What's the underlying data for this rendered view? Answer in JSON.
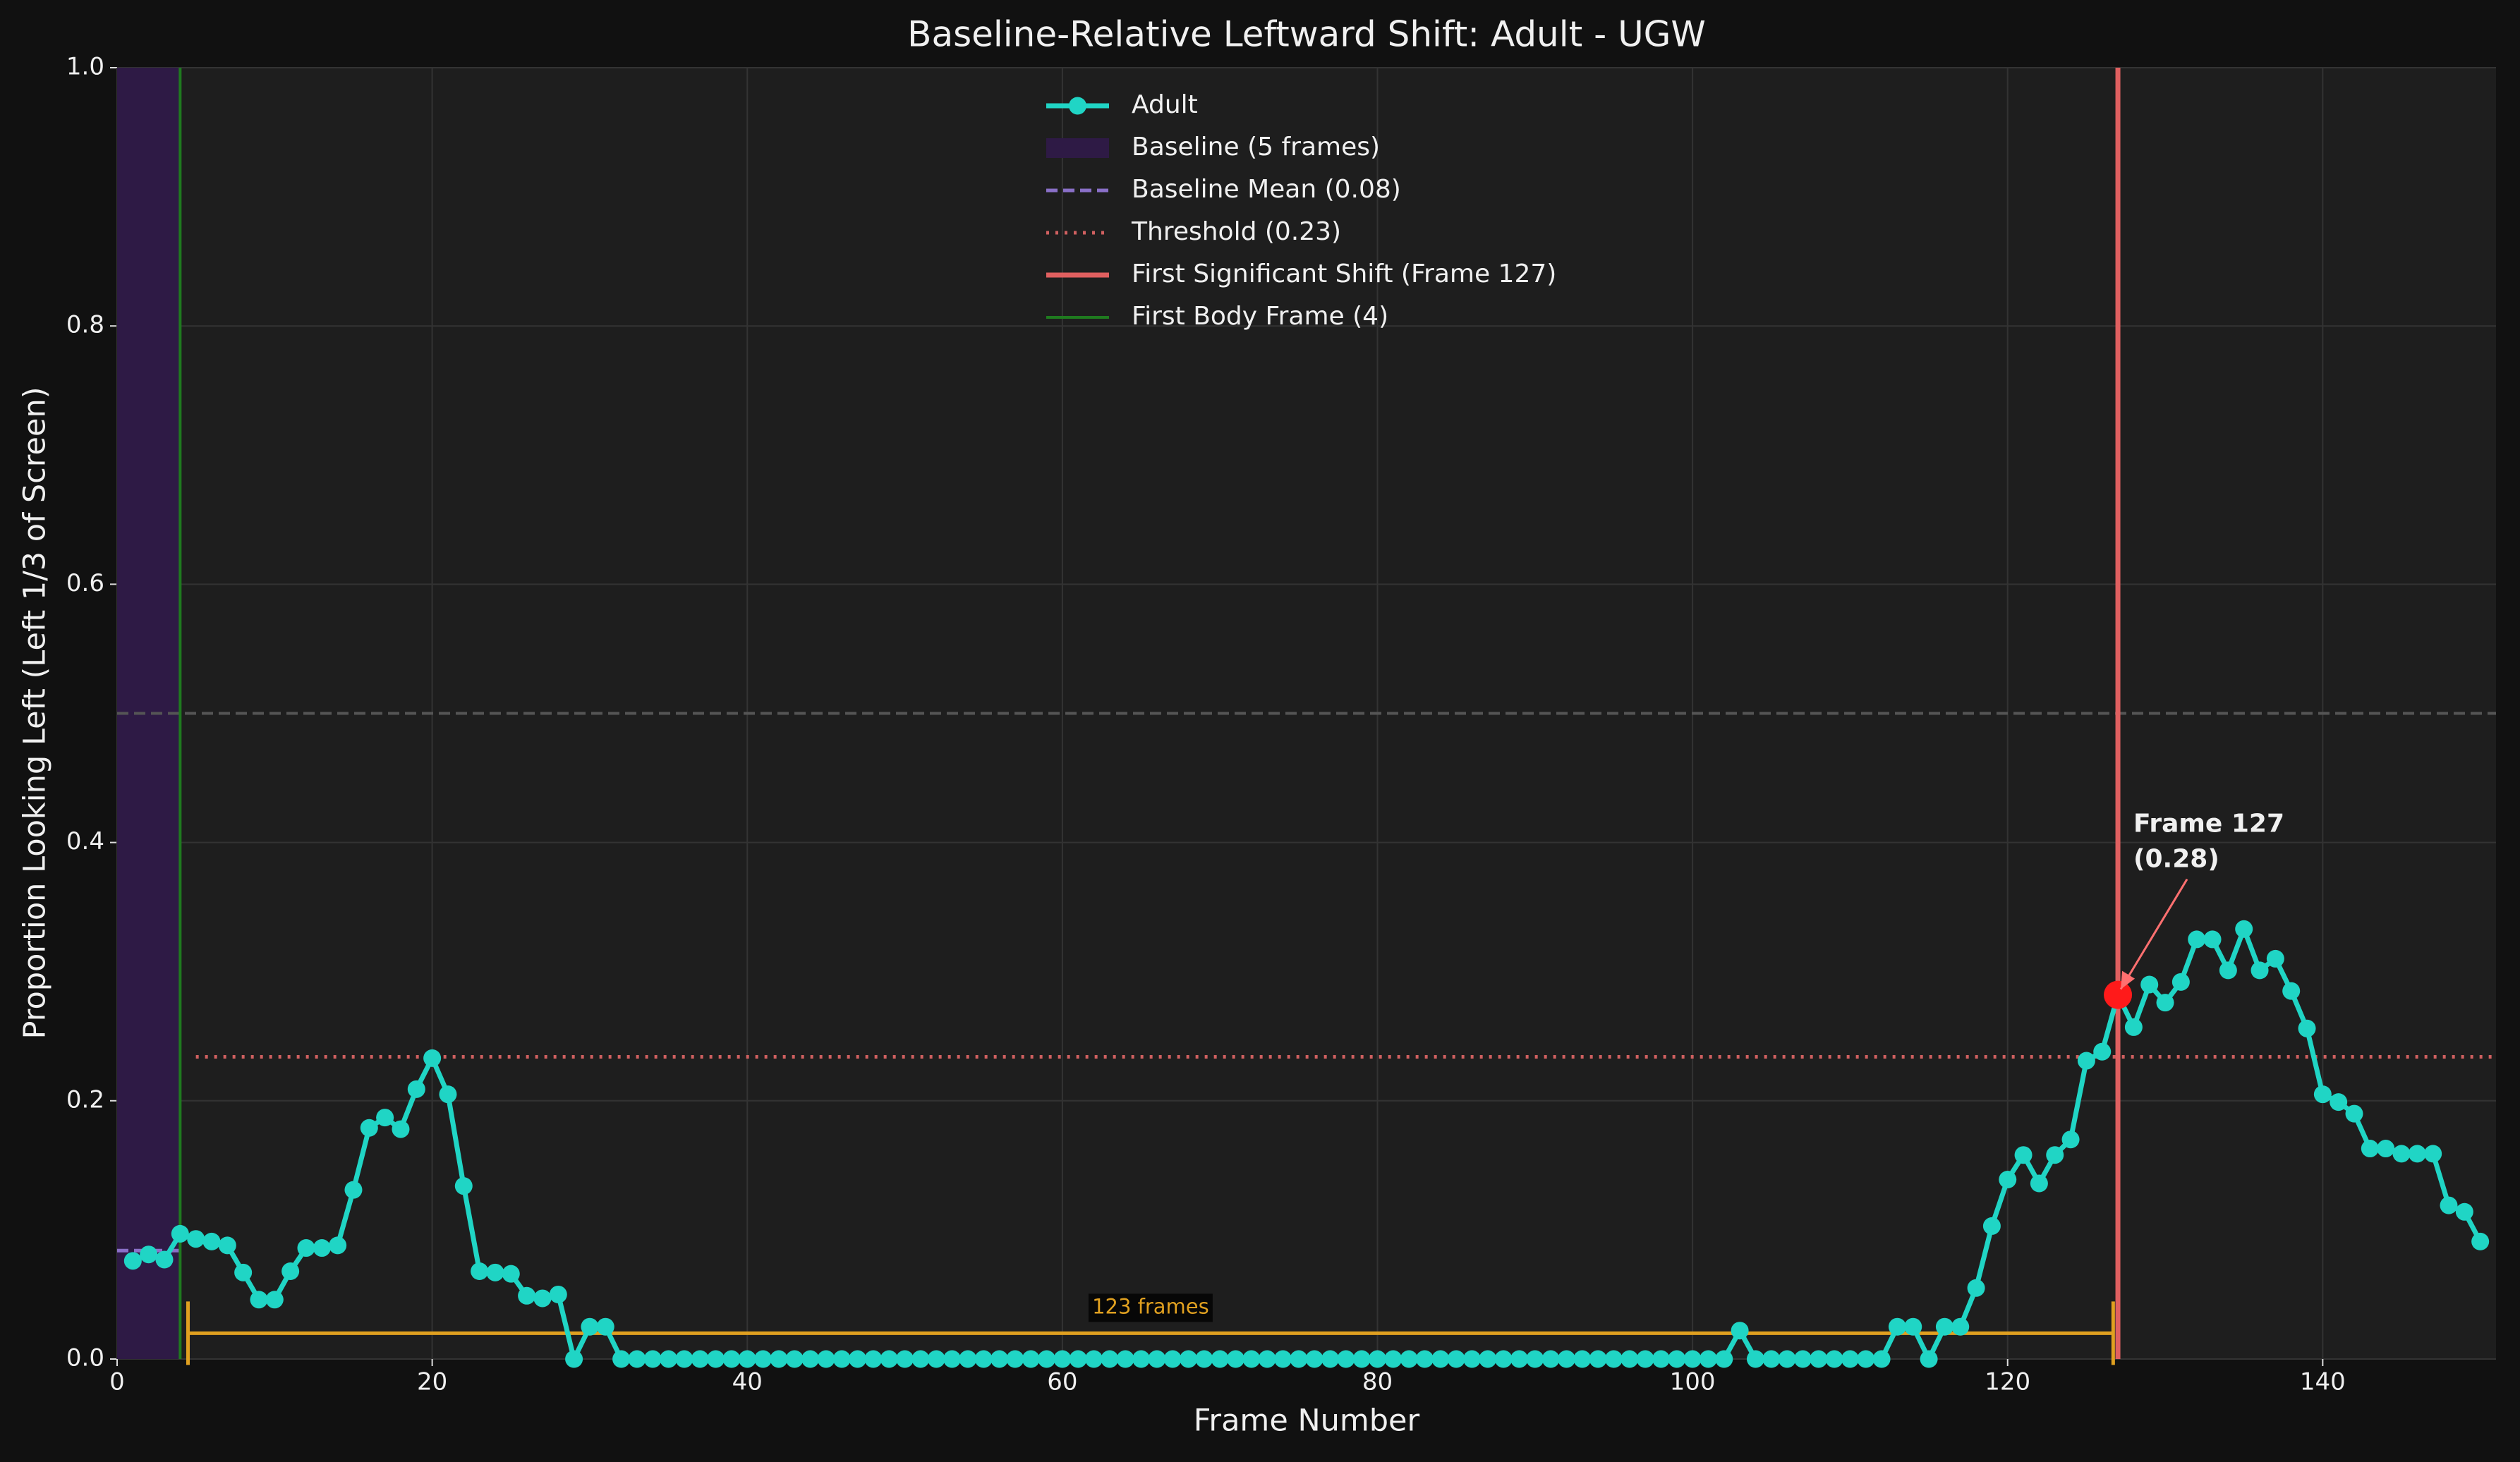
{
  "chart_data": {
    "type": "line",
    "title": "Baseline-Relative Leftward Shift: Adult - UGW",
    "xlabel": "Frame Number",
    "ylabel": "Proportion Looking Left (Left 1/3 of Screen)",
    "xlim": [
      0,
      151
    ],
    "ylim": [
      0,
      1
    ],
    "xticks": [
      0,
      20,
      40,
      60,
      80,
      100,
      120,
      140
    ],
    "yticks": [
      {
        "value": 0,
        "label": "0.0"
      },
      0.2,
      0.4,
      0.6,
      0.8,
      {
        "value": 1,
        "label": "1.0"
      }
    ],
    "grid": true,
    "x": [
      1,
      2,
      3,
      4,
      5,
      6,
      7,
      8,
      9,
      10,
      11,
      12,
      13,
      14,
      15,
      16,
      17,
      18,
      19,
      20,
      21,
      22,
      23,
      24,
      25,
      26,
      27,
      28,
      29,
      30,
      31,
      32,
      33,
      34,
      35,
      36,
      37,
      38,
      39,
      40,
      41,
      42,
      43,
      44,
      45,
      46,
      47,
      48,
      49,
      50,
      51,
      52,
      53,
      54,
      55,
      56,
      57,
      58,
      59,
      60,
      61,
      62,
      63,
      64,
      65,
      66,
      67,
      68,
      69,
      70,
      71,
      72,
      73,
      74,
      75,
      76,
      77,
      78,
      79,
      80,
      81,
      82,
      83,
      84,
      85,
      86,
      87,
      88,
      89,
      90,
      91,
      92,
      93,
      94,
      95,
      96,
      97,
      98,
      99,
      100,
      101,
      102,
      103,
      104,
      105,
      106,
      107,
      108,
      109,
      110,
      111,
      112,
      113,
      114,
      115,
      116,
      117,
      118,
      119,
      120,
      121,
      122,
      123,
      124,
      125,
      126,
      127,
      128,
      129,
      130,
      131,
      132,
      133,
      134,
      135,
      136,
      137,
      138,
      139,
      140,
      141,
      142,
      143,
      144,
      145,
      146,
      147,
      148,
      149,
      150
    ],
    "series": [
      {
        "name": "Adult",
        "color": "#20d5c5",
        "values": [
          0.076,
          0.081,
          0.077,
          0.097,
          0.093,
          0.091,
          0.088,
          0.067,
          0.046,
          0.046,
          0.068,
          0.086,
          0.086,
          0.088,
          0.131,
          0.179,
          0.187,
          0.178,
          0.209,
          0.233,
          0.205,
          0.134,
          0.068,
          0.067,
          0.066,
          0.049,
          0.047,
          0.05,
          0,
          0.025,
          0.025,
          0,
          0,
          0,
          0,
          0,
          0,
          0,
          0,
          0,
          0,
          0,
          0,
          0,
          0,
          0,
          0,
          0,
          0,
          0,
          0,
          0,
          0,
          0,
          0,
          0,
          0,
          0,
          0,
          0,
          0,
          0,
          0,
          0,
          0,
          0,
          0,
          0,
          0,
          0,
          0,
          0,
          0,
          0,
          0,
          0,
          0,
          0,
          0,
          0,
          0,
          0,
          0,
          0,
          0,
          0,
          0,
          0,
          0,
          0,
          0,
          0,
          0,
          0,
          0,
          0,
          0,
          0,
          0,
          0,
          0,
          0,
          0.022,
          0,
          0,
          0,
          0,
          0,
          0,
          0,
          0,
          0,
          0.025,
          0.025,
          0,
          0.025,
          0.025,
          0.055,
          0.103,
          0.139,
          0.158,
          0.136,
          0.158,
          0.17,
          0.231,
          0.238,
          0.282,
          0.257,
          0.29,
          0.276,
          0.292,
          0.325,
          0.325,
          0.301,
          0.333,
          0.301,
          0.31,
          0.285,
          0.256,
          0.205,
          0.199,
          0.19,
          0.163,
          0.163,
          0.159,
          0.159,
          0.159,
          0.119,
          0.114,
          0.091
        ]
      }
    ],
    "baseline": {
      "label": "Baseline (5 frames)",
      "start": 0,
      "end": 4,
      "color": "#2e1a45"
    },
    "baseline_mean": {
      "label": "Baseline Mean (0.08)",
      "value": 0.084,
      "color": "#8a70c8"
    },
    "threshold": {
      "label": "Threshold (0.23)",
      "value": 0.234,
      "start": 5,
      "color": "#d06060"
    },
    "shift": {
      "label": "First Significant Shift (Frame 127)",
      "frame": 127,
      "value": 0.282,
      "color": "#e06060",
      "marker_color": "#ff1a1a"
    },
    "body": {
      "label": "First Body Frame (4)",
      "frame": 4,
      "color": "#1f7a1f"
    },
    "reference": {
      "value": 0.5,
      "color": "#555555"
    },
    "bracket": {
      "label": "123 frames",
      "start": 4.5,
      "end": 126.7,
      "value": 0.02,
      "color": "#e0a020"
    },
    "annotation": [
      "Frame 127",
      "(0.28)"
    ]
  }
}
